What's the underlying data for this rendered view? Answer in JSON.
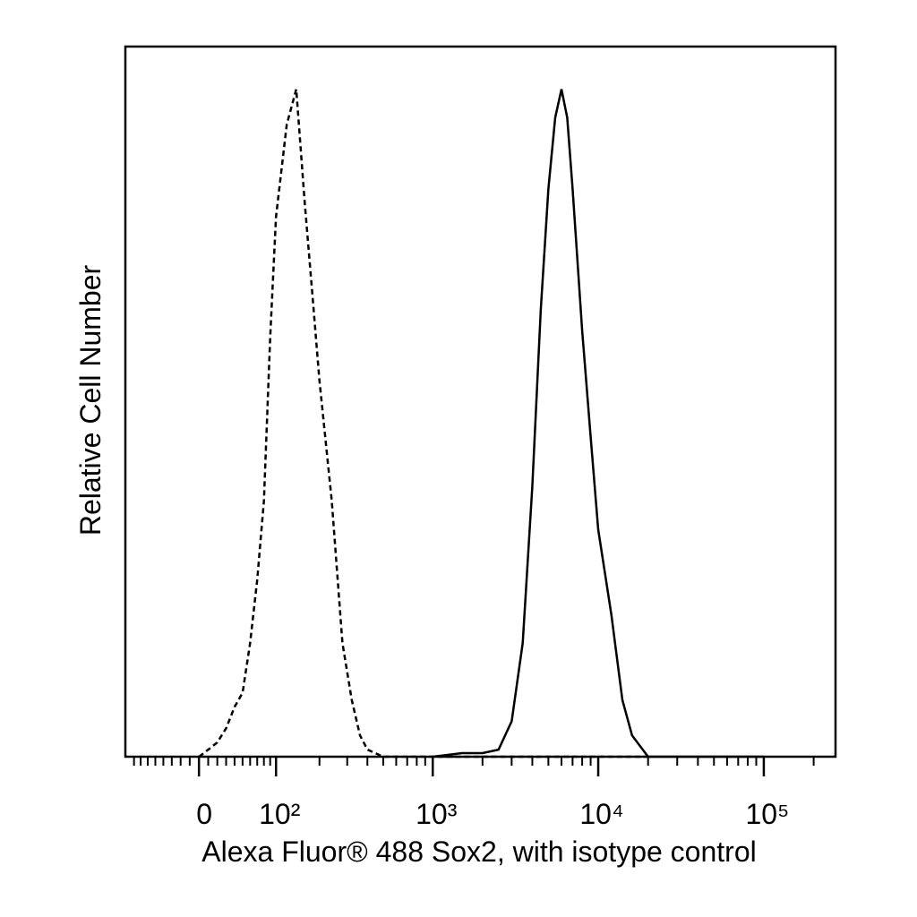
{
  "chart_data": {
    "type": "line",
    "xlabel": "Alexa Fluor® 488 Sox2, with isotype control",
    "ylabel": "Relative Cell Number",
    "xscale": "biexponential",
    "xlim": [
      -94,
      271000
    ],
    "ylim": [
      0,
      100
    ],
    "xticks": [
      {
        "value": 0,
        "label": "0"
      },
      {
        "value": 100,
        "label": "10²"
      },
      {
        "value": 1000,
        "label": "10³"
      },
      {
        "value": 10000,
        "label": "10⁴"
      },
      {
        "value": 100000,
        "label": "10⁵"
      }
    ],
    "xminorticks": [
      -80,
      -70,
      -60,
      -50,
      -40,
      -30,
      -20,
      -10,
      10,
      20,
      30,
      40,
      50,
      60,
      70,
      80,
      90,
      200,
      300,
      400,
      500,
      600,
      700,
      800,
      900,
      2000,
      3000,
      4000,
      5000,
      6000,
      7000,
      8000,
      9000,
      20000,
      30000,
      40000,
      50000,
      60000,
      70000,
      80000,
      90000,
      200000
    ],
    "series": [
      {
        "color": "#000000",
        "dashed": true,
        "x": [
          0,
          10,
          20,
          30,
          40,
          50,
          60,
          70,
          80,
          90,
          100,
          120,
          140,
          160,
          180,
          200,
          240,
          280,
          320,
          360,
          400,
          500,
          1000,
          20000
        ],
        "values": [
          0,
          1,
          2,
          4,
          7,
          9,
          16,
          25,
          36,
          59,
          76,
          89,
          94,
          78,
          65,
          53,
          36,
          16,
          8,
          3,
          1,
          0,
          0,
          0
        ]
      },
      {
        "color": "#000000",
        "dashed": false,
        "x": [
          1000,
          1500,
          2000,
          2500,
          3000,
          3500,
          4000,
          4500,
          5000,
          5500,
          6000,
          6500,
          7000,
          8000,
          9000,
          10000,
          12000,
          14000,
          16000,
          20000,
          100000
        ],
        "values": [
          0,
          0.5,
          0.5,
          1,
          5,
          16,
          38,
          63,
          80,
          90,
          94,
          90,
          80,
          60,
          45,
          32,
          20,
          8,
          3,
          0,
          0
        ]
      }
    ]
  }
}
